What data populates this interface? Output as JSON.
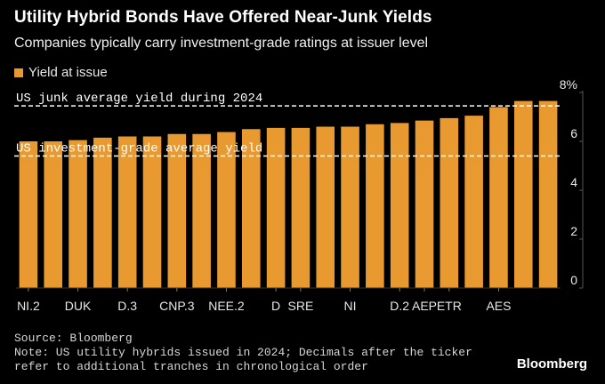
{
  "header": {
    "title": "Utility Hybrid Bonds Have Offered Near-Junk Yields",
    "subtitle": "Companies typically carry investment-grade ratings at issuer level"
  },
  "footer": {
    "source": "Source: Bloomberg",
    "note": "Note: US utility hybrids issued in 2024; Decimals after the ticker refer to additional tranches in chronological order",
    "logo": "Bloomberg"
  },
  "colors": {
    "bar": "#e8992f",
    "background": "#000000",
    "reference_line": "#ffffff"
  },
  "chart_data": {
    "type": "bar",
    "title": "Utility Hybrid Bonds Have Offered Near-Junk Yields",
    "subtitle": "Companies typically carry investment-grade ratings at issuer level",
    "legend": {
      "placement": "top-left",
      "entries": [
        "Yield at issue"
      ]
    },
    "series": [
      {
        "name": "Yield at issue",
        "values": [
          6.0,
          6.0,
          6.05,
          6.15,
          6.2,
          6.2,
          6.3,
          6.3,
          6.38,
          6.5,
          6.55,
          6.55,
          6.6,
          6.6,
          6.7,
          6.75,
          6.85,
          6.95,
          7.05,
          7.4,
          7.65,
          7.65
        ]
      }
    ],
    "x_tick_labels": [
      "NI.2",
      "DUK",
      "D.3",
      "CNP.3",
      "NEE.2",
      "D",
      "SRE",
      "NI",
      "D.2",
      "AEP",
      "ETR",
      "AES"
    ],
    "x_tick_bar_index": [
      0,
      2,
      4,
      6,
      8,
      10,
      11,
      13,
      15,
      16,
      17,
      19
    ],
    "y_ticks": [
      0,
      2,
      4,
      6,
      8
    ],
    "y_tick_labels": [
      "0",
      "2",
      "4",
      "6",
      "8%"
    ],
    "ylim": [
      0,
      8
    ],
    "grid": false,
    "reference_lines": [
      {
        "label": "US junk average yield during 2024",
        "value": 7.45
      },
      {
        "label": "US investment-grade average yield",
        "value": 5.4
      }
    ],
    "xlabel": "",
    "ylabel": ""
  }
}
